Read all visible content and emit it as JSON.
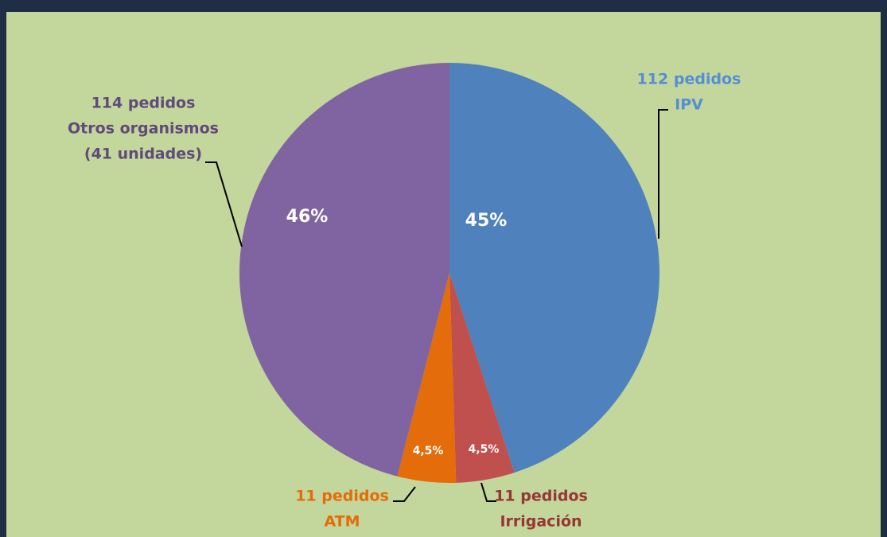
{
  "chart_data": {
    "type": "pie",
    "categories": [
      "IPV",
      "Irrigación",
      "ATM",
      "Otros organismos"
    ],
    "values": [
      45,
      4.5,
      4.5,
      46
    ],
    "value_labels": [
      "45%",
      "4,5%",
      "4,5%",
      "46%"
    ],
    "colors": [
      "#4f81bd",
      "#c0504d",
      "#e46c0a",
      "#8064a2"
    ],
    "label_lines": [
      [
        "112 pedidos",
        "IPV"
      ],
      [
        "11 pedidos",
        "Irrigación"
      ],
      [
        "11 pedidos",
        "ATM"
      ],
      [
        "114 pedidos",
        "Otros organismos",
        "(41 unidades)"
      ]
    ]
  }
}
